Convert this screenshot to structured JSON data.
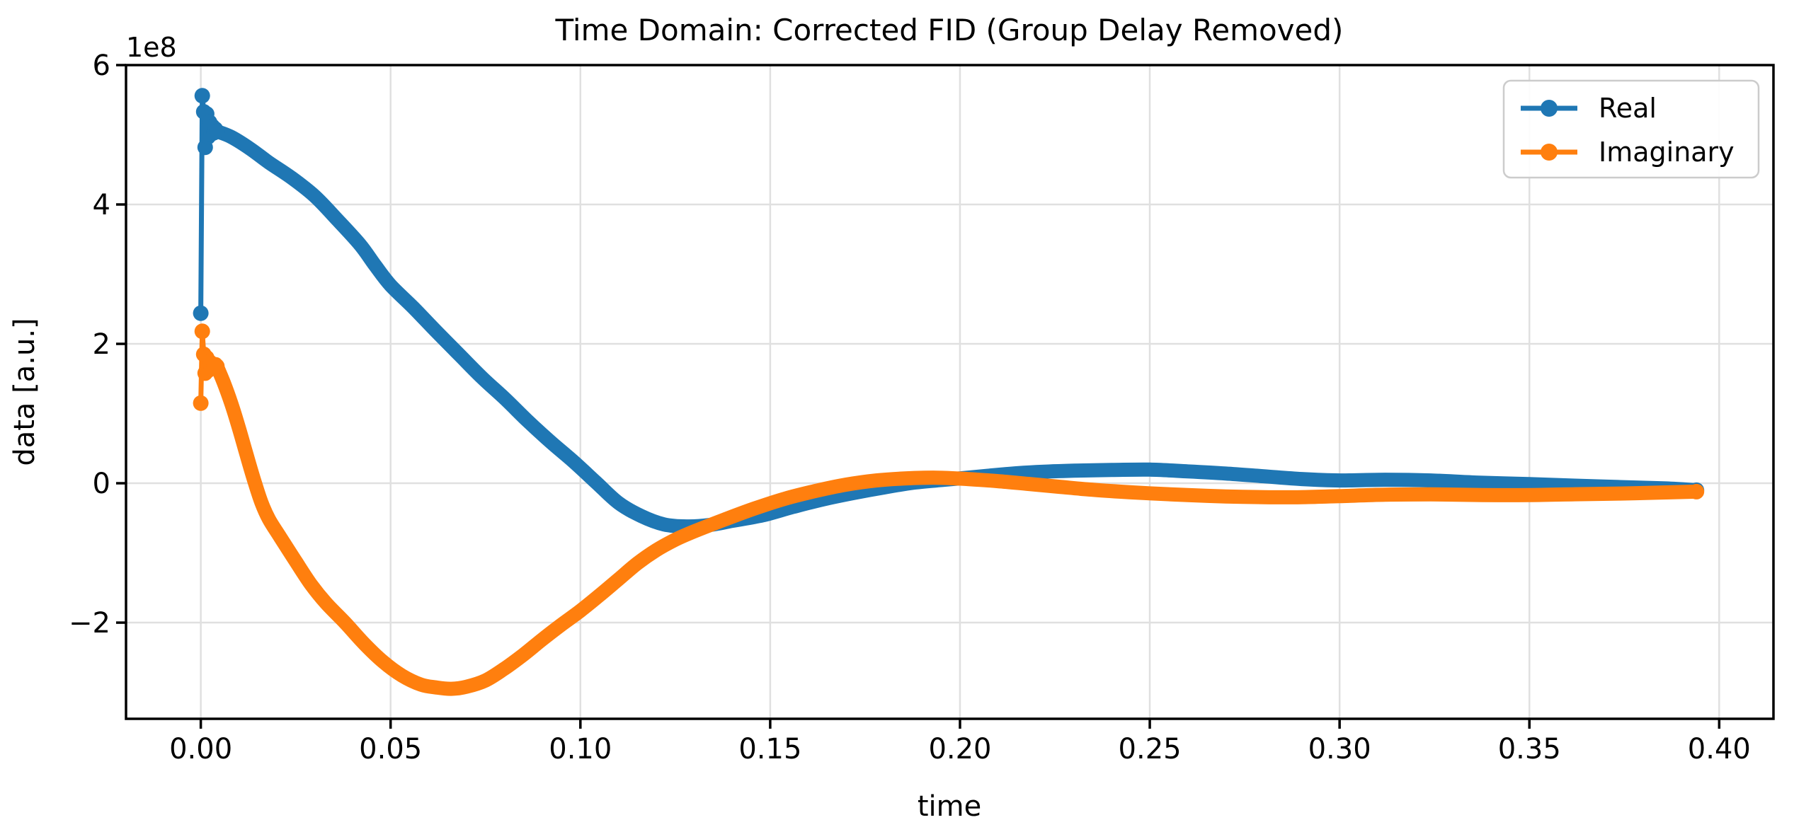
{
  "figure": {
    "background": "#ffffff",
    "plot_bg": "#ffffff",
    "spine_color": "#000000",
    "grid_color": "#e0e0e0",
    "legend_border_color": "#cccccc"
  },
  "chart_data": {
    "type": "line",
    "title": "Time Domain: Corrected FID (Group Delay Removed)",
    "xlabel": "time",
    "ylabel": "data [a.u.]",
    "y_offset_factor": "1e8",
    "xlim": [
      -0.0197,
      0.4143
    ],
    "ylim_e8": [
      -3.38,
      6.0
    ],
    "grid": true,
    "xticks": {
      "values": [
        0.0,
        0.05,
        0.1,
        0.15,
        0.2,
        0.25,
        0.3,
        0.35,
        0.4
      ],
      "labels": [
        "0.00",
        "0.05",
        "0.10",
        "0.15",
        "0.20",
        "0.25",
        "0.30",
        "0.35",
        "0.40"
      ]
    },
    "yticks": {
      "values_e8": [
        6,
        4,
        2,
        0,
        -2
      ],
      "labels": [
        "6",
        "4",
        "2",
        "0",
        "−2"
      ]
    },
    "legend": {
      "position": "upper right",
      "entries": [
        {
          "label": "Real",
          "color": "#1f77b4"
        },
        {
          "label": "Imaginary",
          "color": "#ff7f0e"
        }
      ]
    },
    "series": [
      {
        "name": "Real",
        "color": "#1f77b4",
        "marker": "o",
        "initial_spike_points_e8": [
          [
            0.0,
            2.44
          ],
          [
            0.000385,
            5.56
          ],
          [
            0.00077,
            5.33
          ],
          [
            0.001155,
            4.82
          ],
          [
            0.00154,
            5.3
          ],
          [
            0.001925,
            4.97
          ],
          [
            0.00231,
            5.18
          ],
          [
            0.002695,
            5.01
          ],
          [
            0.00308,
            5.12
          ],
          [
            0.003465,
            5.03
          ],
          [
            0.00385,
            5.08
          ],
          [
            0.004235,
            5.05
          ]
        ],
        "points_e8": [
          [
            0.004235,
            5.05
          ],
          [
            0.008,
            4.97
          ],
          [
            0.013,
            4.8
          ],
          [
            0.018,
            4.6
          ],
          [
            0.024,
            4.38
          ],
          [
            0.03,
            4.12
          ],
          [
            0.036,
            3.78
          ],
          [
            0.042,
            3.42
          ],
          [
            0.046,
            3.12
          ],
          [
            0.05,
            2.84
          ],
          [
            0.056,
            2.52
          ],
          [
            0.062,
            2.18
          ],
          [
            0.068,
            1.85
          ],
          [
            0.074,
            1.52
          ],
          [
            0.08,
            1.22
          ],
          [
            0.086,
            0.9
          ],
          [
            0.092,
            0.6
          ],
          [
            0.098,
            0.32
          ],
          [
            0.104,
            0.02
          ],
          [
            0.11,
            -0.28
          ],
          [
            0.116,
            -0.47
          ],
          [
            0.122,
            -0.59
          ],
          [
            0.128,
            -0.62
          ],
          [
            0.134,
            -0.6
          ],
          [
            0.14,
            -0.54
          ],
          [
            0.148,
            -0.46
          ],
          [
            0.156,
            -0.34
          ],
          [
            0.164,
            -0.23
          ],
          [
            0.172,
            -0.14
          ],
          [
            0.18,
            -0.06
          ],
          [
            0.188,
            0.01
          ],
          [
            0.196,
            0.05
          ],
          [
            0.204,
            0.09
          ],
          [
            0.212,
            0.13
          ],
          [
            0.22,
            0.16
          ],
          [
            0.23,
            0.18
          ],
          [
            0.24,
            0.19
          ],
          [
            0.25,
            0.195
          ],
          [
            0.26,
            0.17
          ],
          [
            0.27,
            0.14
          ],
          [
            0.28,
            0.1
          ],
          [
            0.29,
            0.06
          ],
          [
            0.3,
            0.04
          ],
          [
            0.312,
            0.05
          ],
          [
            0.324,
            0.04
          ],
          [
            0.336,
            0.01
          ],
          [
            0.35,
            -0.012
          ],
          [
            0.362,
            -0.035
          ],
          [
            0.374,
            -0.055
          ],
          [
            0.386,
            -0.075
          ],
          [
            0.394,
            -0.1
          ]
        ]
      },
      {
        "name": "Imaginary",
        "color": "#ff7f0e",
        "marker": "o",
        "initial_spike_points_e8": [
          [
            0.0,
            1.15
          ],
          [
            0.000385,
            2.18
          ],
          [
            0.00077,
            1.85
          ],
          [
            0.001155,
            1.58
          ],
          [
            0.00154,
            1.8
          ],
          [
            0.001925,
            1.62
          ],
          [
            0.00231,
            1.74
          ],
          [
            0.002695,
            1.65
          ],
          [
            0.00308,
            1.71
          ],
          [
            0.003465,
            1.67
          ],
          [
            0.00385,
            1.7
          ],
          [
            0.004235,
            1.68
          ]
        ],
        "points_e8": [
          [
            0.004235,
            1.68
          ],
          [
            0.006,
            1.45
          ],
          [
            0.008,
            1.15
          ],
          [
            0.01,
            0.8
          ],
          [
            0.012,
            0.42
          ],
          [
            0.014,
            0.05
          ],
          [
            0.016,
            -0.28
          ],
          [
            0.018,
            -0.52
          ],
          [
            0.021,
            -0.78
          ],
          [
            0.025,
            -1.12
          ],
          [
            0.029,
            -1.45
          ],
          [
            0.033,
            -1.72
          ],
          [
            0.038,
            -2.0
          ],
          [
            0.043,
            -2.3
          ],
          [
            0.048,
            -2.56
          ],
          [
            0.053,
            -2.76
          ],
          [
            0.058,
            -2.89
          ],
          [
            0.062,
            -2.93
          ],
          [
            0.066,
            -2.95
          ],
          [
            0.07,
            -2.92
          ],
          [
            0.075,
            -2.83
          ],
          [
            0.08,
            -2.66
          ],
          [
            0.085,
            -2.46
          ],
          [
            0.09,
            -2.24
          ],
          [
            0.095,
            -2.03
          ],
          [
            0.1,
            -1.83
          ],
          [
            0.105,
            -1.61
          ],
          [
            0.11,
            -1.38
          ],
          [
            0.115,
            -1.15
          ],
          [
            0.12,
            -0.96
          ],
          [
            0.125,
            -0.81
          ],
          [
            0.13,
            -0.69
          ],
          [
            0.138,
            -0.52
          ],
          [
            0.146,
            -0.36
          ],
          [
            0.154,
            -0.22
          ],
          [
            0.162,
            -0.11
          ],
          [
            0.17,
            -0.02
          ],
          [
            0.178,
            0.04
          ],
          [
            0.186,
            0.07
          ],
          [
            0.194,
            0.08
          ],
          [
            0.202,
            0.06
          ],
          [
            0.21,
            0.03
          ],
          [
            0.218,
            -0.01
          ],
          [
            0.226,
            -0.05
          ],
          [
            0.234,
            -0.09
          ],
          [
            0.242,
            -0.12
          ],
          [
            0.25,
            -0.145
          ],
          [
            0.26,
            -0.17
          ],
          [
            0.27,
            -0.19
          ],
          [
            0.28,
            -0.2
          ],
          [
            0.29,
            -0.2
          ],
          [
            0.3,
            -0.185
          ],
          [
            0.312,
            -0.165
          ],
          [
            0.324,
            -0.16
          ],
          [
            0.336,
            -0.168
          ],
          [
            0.35,
            -0.17
          ],
          [
            0.362,
            -0.158
          ],
          [
            0.374,
            -0.148
          ],
          [
            0.386,
            -0.132
          ],
          [
            0.394,
            -0.12
          ]
        ]
      }
    ]
  }
}
